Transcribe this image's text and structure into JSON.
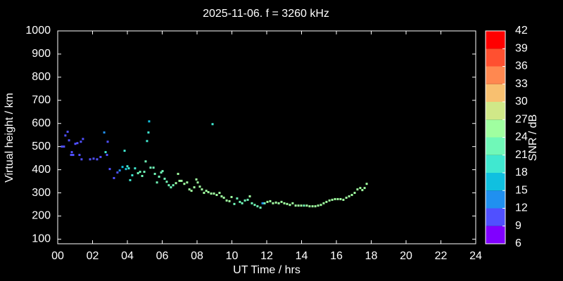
{
  "chart_data": {
    "type": "scatter",
    "title": "2025-11-06. f = 3260 kHz",
    "x_label": "UT Time / hrs",
    "y_label": "Virtual height / km",
    "colorbar_label": "SNR / dB",
    "x": [
      0.24,
      0.36,
      0.44,
      0.57,
      0.65,
      0.77,
      0.81,
      0.89,
      1.01,
      1.13,
      1.25,
      1.33,
      1.45,
      1.37,
      1.86,
      2.06,
      2.26,
      2.46,
      2.67,
      2.75,
      2.83,
      2.87,
      2.99,
      3.23,
      3.43,
      3.56,
      3.72,
      3.84,
      3.92,
      4.0,
      4.08,
      4.16,
      4.28,
      4.44,
      4.61,
      4.73,
      4.85,
      4.97,
      5.05,
      5.13,
      5.21,
      5.25,
      5.33,
      5.5,
      5.58,
      5.7,
      5.82,
      5.94,
      6.02,
      6.14,
      6.26,
      6.38,
      6.5,
      6.63,
      6.79,
      6.91,
      6.99,
      7.11,
      7.27,
      7.43,
      7.56,
      7.68,
      7.84,
      7.96,
      8.04,
      8.16,
      8.28,
      8.4,
      8.53,
      8.65,
      8.81,
      8.89,
      8.97,
      9.13,
      9.29,
      9.41,
      9.54,
      9.7,
      9.86,
      9.98,
      10.14,
      10.3,
      10.46,
      10.59,
      10.75,
      10.91,
      11.03,
      11.15,
      11.31,
      11.47,
      11.64,
      11.76,
      11.88,
      12.04,
      12.2,
      12.36,
      12.53,
      12.69,
      12.85,
      13.01,
      13.17,
      13.33,
      13.49,
      13.66,
      13.82,
      13.98,
      14.14,
      14.3,
      14.46,
      14.63,
      14.79,
      14.95,
      15.11,
      15.27,
      15.43,
      15.6,
      15.76,
      15.92,
      16.08,
      16.24,
      16.4,
      16.57,
      16.73,
      16.89,
      17.05,
      17.21,
      17.37,
      17.49,
      17.62,
      17.74
    ],
    "values": [
      500,
      500,
      548,
      564,
      527,
      464,
      476,
      464,
      512,
      515,
      464,
      521,
      533,
      445,
      445,
      448,
      445,
      455,
      561,
      476,
      464,
      521,
      403,
      364,
      388,
      397,
      412,
      482,
      403,
      415,
      406,
      355,
      376,
      406,
      385,
      391,
      373,
      391,
      436,
      524,
      561,
      609,
      409,
      409,
      382,
      345,
      370,
      388,
      394,
      361,
      348,
      333,
      324,
      333,
      342,
      382,
      352,
      352,
      339,
      345,
      315,
      309,
      324,
      358,
      345,
      327,
      315,
      300,
      309,
      303,
      297,
      597,
      297,
      291,
      300,
      285,
      279,
      267,
      264,
      282,
      252,
      276,
      261,
      255,
      267,
      270,
      285,
      255,
      248,
      242,
      236,
      255,
      255,
      261,
      264,
      255,
      258,
      255,
      261,
      255,
      252,
      248,
      255,
      245,
      245,
      245,
      245,
      245,
      242,
      242,
      242,
      245,
      248,
      255,
      261,
      267,
      270,
      273,
      273,
      273,
      270,
      279,
      285,
      291,
      300,
      315,
      321,
      312,
      321,
      339
    ],
    "snr": [
      10,
      10,
      10,
      10,
      10,
      10,
      10,
      10,
      10,
      10,
      10,
      10,
      10,
      10,
      10,
      10,
      10,
      10,
      13,
      20,
      10,
      10,
      10,
      10,
      10,
      14,
      16,
      19,
      16,
      18,
      18,
      18,
      20,
      20,
      22,
      22,
      22,
      22,
      22,
      20,
      18,
      16,
      22,
      22,
      22,
      22,
      22,
      22,
      22,
      22,
      22,
      22,
      22,
      22,
      24,
      24,
      24,
      24,
      24,
      24,
      24,
      24,
      24,
      24,
      24,
      24,
      24,
      24,
      24,
      24,
      24,
      20,
      24,
      24,
      24,
      24,
      24,
      24,
      24,
      24,
      22,
      22,
      22,
      22,
      22,
      22,
      24,
      22,
      22,
      22,
      22,
      14,
      22,
      24,
      24,
      24,
      24,
      24,
      24,
      24,
      24,
      24,
      24,
      24,
      24,
      24,
      22,
      24,
      24,
      24,
      24,
      24,
      24,
      24,
      24,
      24,
      24,
      24,
      24,
      24,
      24,
      24,
      24,
      24,
      24,
      24,
      24,
      24,
      24,
      24
    ],
    "xlim": [
      0,
      24
    ],
    "xticks": [
      {
        "value": 0,
        "label": "00"
      },
      {
        "value": 2,
        "label": "02"
      },
      {
        "value": 4,
        "label": "04"
      },
      {
        "value": 6,
        "label": "06"
      },
      {
        "value": 8,
        "label": "08"
      },
      {
        "value": 10,
        "label": "10"
      },
      {
        "value": 12,
        "label": "12"
      },
      {
        "value": 14,
        "label": "14"
      },
      {
        "value": 16,
        "label": "16"
      },
      {
        "value": 18,
        "label": "18"
      },
      {
        "value": 20,
        "label": "20"
      },
      {
        "value": 22,
        "label": "22"
      },
      {
        "value": 24,
        "label": "24"
      }
    ],
    "ylim": [
      80,
      1000
    ],
    "yticks": [
      100,
      200,
      300,
      400,
      500,
      600,
      700,
      800,
      900,
      1000
    ],
    "clim": [
      6,
      42
    ],
    "cticks": [
      6,
      9,
      12,
      15,
      18,
      21,
      24,
      27,
      30,
      33,
      36,
      39,
      42
    ],
    "colors": [
      "#8000ff",
      "#5050ff",
      "#2090f0",
      "#10c0e0",
      "#40e8d0",
      "#70f8b8",
      "#a0ffa0",
      "#d0e888",
      "#f8c070",
      "#ff8850",
      "#ff5030",
      "#ff0000"
    ]
  }
}
